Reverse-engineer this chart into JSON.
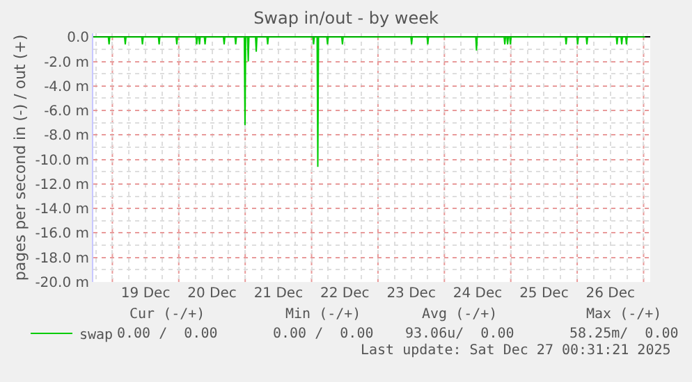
{
  "chart_data": {
    "type": "line",
    "title": "Swap in/out - by week",
    "ylabel": "pages per second in (-) / out (+)",
    "xlim": [
      "2025-12-18T17:06",
      "2025-12-27T02:24"
    ],
    "ylim": [
      -20,
      0.3
    ],
    "xticks": [
      {
        "value": "2025-12-19T12:00",
        "label": "19 Dec"
      },
      {
        "value": "2025-12-20T12:00",
        "label": "20 Dec"
      },
      {
        "value": "2025-12-21T12:00",
        "label": "21 Dec"
      },
      {
        "value": "2025-12-22T12:00",
        "label": "22 Dec"
      },
      {
        "value": "2025-12-23T12:00",
        "label": "23 Dec"
      },
      {
        "value": "2025-12-24T12:00",
        "label": "24 Dec"
      },
      {
        "value": "2025-12-25T12:00",
        "label": "25 Dec"
      },
      {
        "value": "2025-12-26T12:00",
        "label": "26 Dec"
      }
    ],
    "yticks": [
      {
        "value": 0,
        "label": "0.0"
      },
      {
        "value": -2,
        "label": "-2.0 m"
      },
      {
        "value": -4,
        "label": "-4.0 m"
      },
      {
        "value": -6,
        "label": "-6.0 m"
      },
      {
        "value": -8,
        "label": "-8.0 m"
      },
      {
        "value": -10,
        "label": "-10.0 m"
      },
      {
        "value": -12,
        "label": "-12.0 m"
      },
      {
        "value": -14,
        "label": "-14.0 m"
      },
      {
        "value": -16,
        "label": "-16.0 m"
      },
      {
        "value": -18,
        "label": "-18.0 m"
      },
      {
        "value": -20,
        "label": "-20.0 m"
      }
    ],
    "grid": true,
    "legend": "bottom left",
    "marker": "none",
    "line_style": "solid",
    "annotations": [
      "Cur (-/+)",
      "Min (-/+)",
      "Avg (-/+)",
      "Max (-/+)",
      "0.00 /  0.00",
      "0.00 /  0.00",
      "93.06u/  0.00",
      "58.25m/  0.00",
      "Last update: Sat Dec 27 00:31:21 2025"
    ],
    "series": [
      {
        "name": "swap",
        "color": "#00cc00",
        "x": [
          "2025-12-18T17:10",
          "2025-12-18T22:33",
          "2025-12-18T22:48",
          "2025-12-18T23:03",
          "2025-12-19T04:25",
          "2025-12-19T04:40",
          "2025-12-19T04:55",
          "2025-12-19T10:37",
          "2025-12-19T10:52",
          "2025-12-19T11:07",
          "2025-12-19T16:39",
          "2025-12-19T16:54",
          "2025-12-19T17:09",
          "2025-12-19T23:02",
          "2025-12-19T23:17",
          "2025-12-19T23:32",
          "2025-12-20T06:14",
          "2025-12-20T06:29",
          "2025-12-20T06:44",
          "2025-12-20T07:14",
          "2025-12-20T07:29",
          "2025-12-20T07:44",
          "2025-12-20T09:15",
          "2025-12-20T09:30",
          "2025-12-20T09:45",
          "2025-12-20T16:09",
          "2025-12-20T16:24",
          "2025-12-20T16:39",
          "2025-12-20T20:19",
          "2025-12-20T20:34",
          "2025-12-20T20:49",
          "2025-12-20T23:41",
          "2025-12-20T23:56",
          "2025-12-21T00:11",
          "2025-12-21T00:51",
          "2025-12-21T01:06",
          "2025-12-21T01:21",
          "2025-12-21T03:45",
          "2025-12-21T04:00",
          "2025-12-21T04:15",
          "2025-12-21T07:53",
          "2025-12-21T08:08",
          "2025-12-21T08:23",
          "2025-12-22T00:29",
          "2025-12-22T00:44",
          "2025-12-22T00:59",
          "2025-12-22T02:00",
          "2025-12-22T02:15",
          "2025-12-22T02:30",
          "2025-12-22T05:31",
          "2025-12-22T05:46",
          "2025-12-22T06:01",
          "2025-12-22T10:54",
          "2025-12-22T11:09",
          "2025-12-22T11:24",
          "2025-12-23T11:54",
          "2025-12-23T12:09",
          "2025-12-23T12:24",
          "2025-12-23T17:45",
          "2025-12-23T18:00",
          "2025-12-23T18:15",
          "2025-12-24T11:21",
          "2025-12-24T11:36",
          "2025-12-24T11:51",
          "2025-12-24T21:35",
          "2025-12-24T21:50",
          "2025-12-24T22:05",
          "2025-12-24T22:36",
          "2025-12-24T22:51",
          "2025-12-24T23:06",
          "2025-12-24T23:37",
          "2025-12-24T23:52",
          "2025-12-25T00:07",
          "2025-12-25T19:45",
          "2025-12-25T20:00",
          "2025-12-25T20:15",
          "2025-12-25T23:55",
          "2025-12-26T00:10",
          "2025-12-26T00:25",
          "2025-12-26T03:16",
          "2025-12-26T03:31",
          "2025-12-26T03:46",
          "2025-12-26T14:09",
          "2025-12-26T14:24",
          "2025-12-26T14:39",
          "2025-12-26T15:51",
          "2025-12-26T16:06",
          "2025-12-26T16:21",
          "2025-12-26T17:33",
          "2025-12-26T17:48",
          "2025-12-26T18:03",
          "2025-12-27T00:30"
        ],
        "values": [
          0,
          0,
          -0.6,
          0,
          0,
          -0.6,
          0,
          0,
          -0.6,
          0,
          0,
          -0.6,
          0,
          0,
          -0.6,
          0,
          0,
          -0.6,
          0,
          0,
          -0.6,
          0,
          0,
          -0.6,
          0,
          0,
          -0.6,
          0,
          0,
          -0.6,
          0,
          0,
          -7.2,
          0,
          0,
          -2.0,
          0,
          0,
          -1.2,
          0,
          0,
          -0.6,
          0,
          0,
          -0.6,
          0,
          0,
          -10.6,
          0,
          0,
          -0.6,
          0,
          0,
          -0.6,
          0,
          0,
          -0.6,
          0,
          0,
          -0.6,
          0,
          0,
          -1.1,
          0,
          0,
          -0.6,
          0,
          0,
          -0.6,
          0,
          0,
          -0.6,
          0,
          0,
          -0.6,
          0,
          0,
          -0.6,
          0,
          0,
          -0.6,
          0,
          0,
          -0.6,
          0,
          0,
          -0.6,
          0,
          0,
          -0.6,
          0,
          0
        ]
      }
    ]
  }
}
